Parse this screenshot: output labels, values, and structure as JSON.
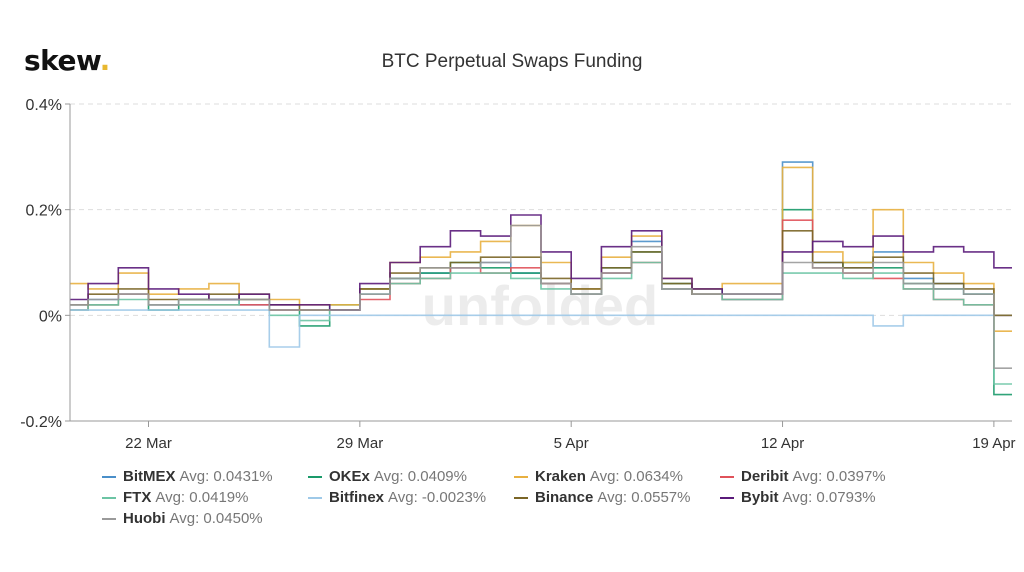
{
  "brand": {
    "name": "skew",
    "dot": "."
  },
  "title": "BTC Perpetual Swaps Funding",
  "watermark": "unfolded",
  "chart_data": {
    "type": "line",
    "title": "BTC Perpetual Swaps Funding",
    "xlabel": "",
    "ylabel": "",
    "x_unit": "days since 22 Mar (daily steps)",
    "x": [
      -3,
      -2,
      -1,
      0,
      1,
      2,
      3,
      4,
      5,
      6,
      7,
      8,
      9,
      10,
      11,
      12,
      13,
      14,
      15,
      16,
      17,
      18,
      19,
      20,
      21,
      22,
      23,
      24,
      25,
      26,
      27,
      28
    ],
    "xlim": [
      -2.6,
      28.6
    ],
    "x_ticks": [
      {
        "value": 0,
        "label": "22 Mar"
      },
      {
        "value": 7,
        "label": "29 Mar"
      },
      {
        "value": 14,
        "label": "5 Apr"
      },
      {
        "value": 21,
        "label": "12 Apr"
      },
      {
        "value": 28,
        "label": "19 Apr"
      }
    ],
    "ylim": [
      -0.2,
      0.4
    ],
    "y_ticks": [
      {
        "value": 0.4,
        "label": "0.4%"
      },
      {
        "value": 0.2,
        "label": "0.2%"
      },
      {
        "value": 0,
        "label": "0%"
      },
      {
        "value": -0.2,
        "label": "-0.2%"
      }
    ],
    "grid": true,
    "legend_position": "bottom",
    "series": [
      {
        "name": "BitMEX",
        "avg_label": "Avg: 0.0431%",
        "color": "#4a8fc9",
        "values": [
          0.02,
          0.03,
          0.04,
          0.02,
          0.03,
          0.03,
          0.02,
          0.01,
          0.01,
          0.01,
          0.04,
          0.07,
          0.08,
          0.09,
          0.1,
          0.08,
          0.06,
          0.04,
          0.08,
          0.14,
          0.05,
          0.04,
          0.03,
          0.03,
          0.29,
          0.1,
          0.09,
          0.12,
          0.07,
          0.06,
          0.04,
          0.0
        ]
      },
      {
        "name": "OKEx",
        "avg_label": "Avg: 0.0409%",
        "color": "#1a9a6a",
        "values": [
          0.01,
          0.02,
          0.04,
          0.01,
          0.03,
          0.03,
          0.04,
          0.01,
          -0.02,
          0.02,
          0.05,
          0.07,
          0.08,
          0.1,
          0.09,
          0.08,
          0.06,
          0.04,
          0.09,
          0.12,
          0.06,
          0.05,
          0.04,
          0.04,
          0.2,
          0.09,
          0.1,
          0.09,
          0.06,
          0.05,
          0.04,
          -0.15
        ]
      },
      {
        "name": "Kraken",
        "avg_label": "Avg: 0.0634%",
        "color": "#e8b040",
        "values": [
          0.06,
          0.05,
          0.08,
          0.04,
          0.05,
          0.06,
          0.04,
          0.03,
          0.02,
          0.02,
          0.05,
          0.1,
          0.11,
          0.12,
          0.14,
          0.17,
          0.1,
          0.05,
          0.11,
          0.15,
          0.07,
          0.05,
          0.06,
          0.06,
          0.28,
          0.12,
          0.1,
          0.2,
          0.1,
          0.08,
          0.06,
          -0.03
        ]
      },
      {
        "name": "Deribit",
        "avg_label": "Avg: 0.0397%",
        "color": "#e0525a",
        "values": [
          0.01,
          0.02,
          0.04,
          0.02,
          0.02,
          0.02,
          0.02,
          0.01,
          0.01,
          0.01,
          0.03,
          0.06,
          0.07,
          0.09,
          0.08,
          0.09,
          0.06,
          0.04,
          0.08,
          0.1,
          0.05,
          0.04,
          0.03,
          0.03,
          0.18,
          0.09,
          0.08,
          0.07,
          0.05,
          0.03,
          0.02,
          0.0
        ]
      },
      {
        "name": "FTX",
        "avg_label": "Avg: 0.0419%",
        "color": "#6cc4a4",
        "values": [
          0.01,
          0.02,
          0.03,
          0.02,
          0.02,
          0.02,
          0.03,
          0.0,
          -0.01,
          0.01,
          0.04,
          0.06,
          0.07,
          0.08,
          0.08,
          0.07,
          0.05,
          0.04,
          0.07,
          0.1,
          0.05,
          0.04,
          0.03,
          0.03,
          0.08,
          0.08,
          0.07,
          0.08,
          0.05,
          0.03,
          0.02,
          -0.13
        ]
      },
      {
        "name": "Bitfinex",
        "avg_label": "Avg: -0.0023%",
        "color": "#9ec9e8",
        "values": [
          0.01,
          0.01,
          0.01,
          0.01,
          0.01,
          0.01,
          0.01,
          -0.06,
          0.0,
          0.0,
          0.0,
          0.0,
          0.0,
          0.0,
          0.0,
          0.0,
          0.0,
          0.0,
          0.0,
          0.0,
          0.0,
          0.0,
          0.0,
          0.0,
          0.0,
          0.0,
          0.0,
          -0.02,
          0.0,
          0.0,
          0.0,
          0.0
        ]
      },
      {
        "name": "Binance",
        "avg_label": "Avg: 0.0557%",
        "color": "#7a6526",
        "values": [
          0.02,
          0.04,
          0.05,
          0.03,
          0.03,
          0.04,
          0.03,
          0.02,
          0.01,
          0.01,
          0.05,
          0.08,
          0.09,
          0.1,
          0.11,
          0.11,
          0.07,
          0.05,
          0.09,
          0.12,
          0.06,
          0.04,
          0.04,
          0.04,
          0.16,
          0.1,
          0.09,
          0.11,
          0.08,
          0.06,
          0.05,
          0.0
        ]
      },
      {
        "name": "Bybit",
        "avg_label": "Avg: 0.0793%",
        "color": "#5a1a7a",
        "values": [
          0.03,
          0.06,
          0.09,
          0.05,
          0.04,
          0.03,
          0.04,
          0.02,
          0.02,
          0.01,
          0.06,
          0.1,
          0.13,
          0.16,
          0.15,
          0.19,
          0.12,
          0.07,
          0.13,
          0.16,
          0.07,
          0.05,
          0.04,
          0.04,
          0.12,
          0.14,
          0.13,
          0.15,
          0.12,
          0.13,
          0.12,
          0.09
        ]
      },
      {
        "name": "Huobi",
        "avg_label": "Avg: 0.0450%",
        "color": "#9a9a9a",
        "values": [
          0.02,
          0.03,
          0.04,
          0.02,
          0.03,
          0.03,
          0.03,
          0.01,
          0.01,
          0.01,
          0.04,
          0.07,
          0.09,
          0.09,
          0.1,
          0.17,
          0.06,
          0.04,
          0.08,
          0.13,
          0.05,
          0.04,
          0.04,
          0.04,
          0.1,
          0.09,
          0.08,
          0.1,
          0.06,
          0.05,
          0.04,
          -0.1
        ]
      }
    ]
  }
}
